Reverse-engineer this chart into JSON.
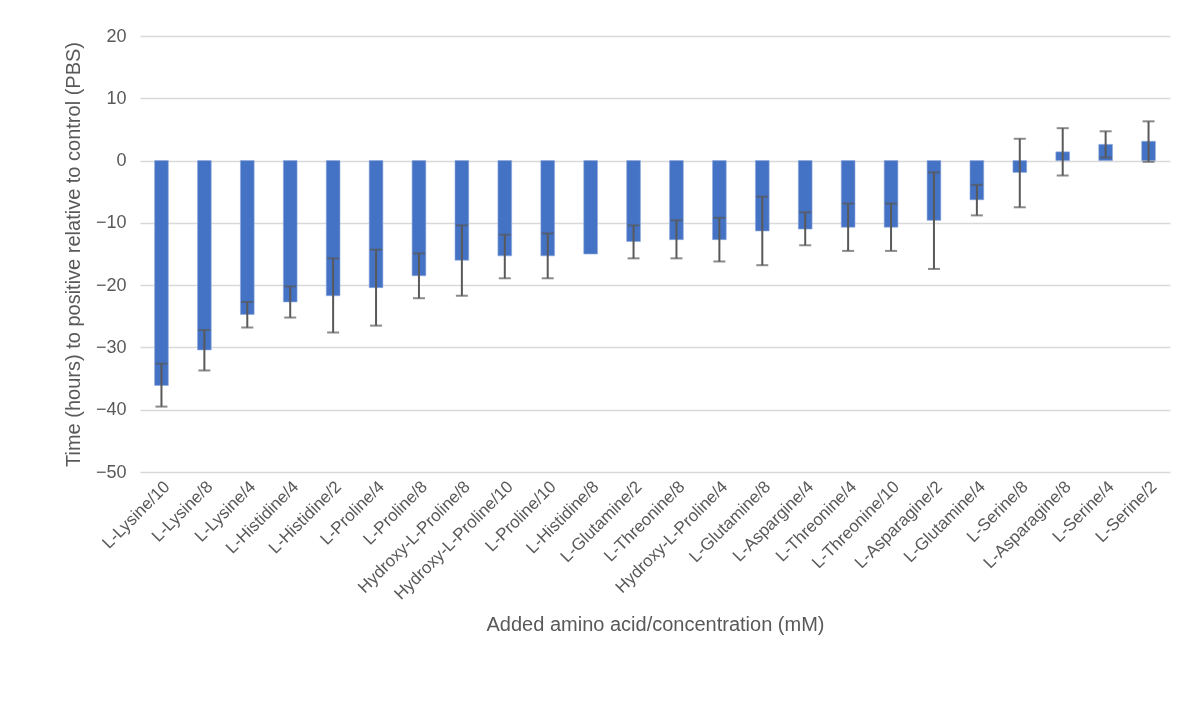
{
  "chart_data": {
    "type": "bar",
    "xlabel": "Added amino acid/concentration (mM)",
    "ylabel": "Time (hours) to positive relative to control (PBS)",
    "categories": [
      "L-Lysine/10",
      "L-Lysine/8",
      "L-Lysine/4",
      "L-Histidine/4",
      "L-Histidine/2",
      "L-Proline/4",
      "L-Proline/8",
      "Hydroxy-L-Proline/8",
      "Hydroxy-L-Proline/10",
      "L-Proline/10",
      "L-Histidine/8",
      "L-Glutamine/2",
      "L-Threonine/8",
      "Hydroxy-L-Proline/4",
      "L-Glutamine/8",
      "L-Aspargine/4",
      "L-Threonine/4",
      "L-Threonine/10",
      "L-Asparagine/2",
      "L-Glutamine/4",
      "L-Serine/8",
      "L-Asparagine/8",
      "L-Serine/4",
      "L-Serine/2"
    ],
    "values": [
      -36.1,
      -30.4,
      -24.7,
      -22.7,
      -21.7,
      -20.4,
      -18.5,
      -16.0,
      -15.3,
      -15.3,
      -15.0,
      -13.0,
      -12.7,
      -12.7,
      -11.3,
      -11.0,
      -10.7,
      -10.7,
      -9.6,
      -6.3,
      -1.9,
      1.4,
      2.6,
      3.1
    ],
    "errors": [
      [
        -39.5,
        -32.6
      ],
      [
        -33.7,
        -27.2
      ],
      [
        -26.8,
        -22.7
      ],
      [
        -25.2,
        -20.2
      ],
      [
        -27.6,
        -15.7
      ],
      [
        -26.5,
        -14.3
      ],
      [
        -22.1,
        -14.9
      ],
      [
        -21.7,
        -10.4
      ],
      [
        -18.9,
        -11.9
      ],
      [
        -18.9,
        -11.7
      ],
      null,
      [
        -15.7,
        -10.4
      ],
      [
        -15.7,
        -9.6
      ],
      [
        -16.2,
        -9.2
      ],
      [
        -16.8,
        -5.8
      ],
      [
        -13.6,
        -8.3
      ],
      [
        -14.5,
        -6.9
      ],
      [
        -14.5,
        -6.9
      ],
      [
        -17.4,
        -1.9
      ],
      [
        -8.8,
        -3.9
      ],
      [
        -7.5,
        3.5
      ],
      [
        -2.4,
        5.2
      ],
      [
        0.5,
        4.7
      ],
      [
        -0.2,
        6.3
      ]
    ],
    "color": "#4472c4",
    "ylim": [
      -50,
      20
    ],
    "yticks": [
      -50,
      -40,
      -30,
      -20,
      -10,
      0,
      10,
      20
    ],
    "grid": "y"
  }
}
